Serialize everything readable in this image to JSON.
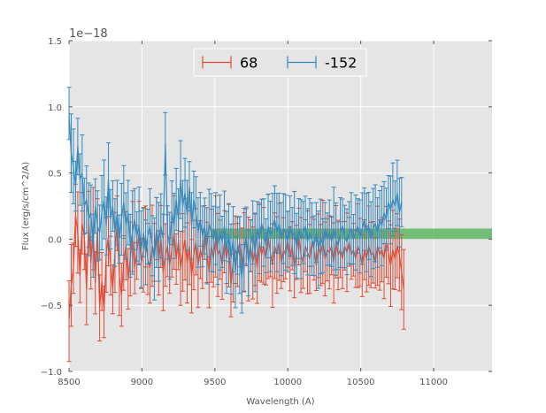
{
  "chart_data": {
    "type": "line",
    "title": "",
    "xlabel": "Wavelength (A)",
    "ylabel": "Flux (erg/s/cm^2/A)",
    "y_offset_label": "1e−18",
    "xlim": [
      8500,
      11400
    ],
    "ylim": [
      -1.0,
      1.5
    ],
    "x_ticks": [
      8500,
      9000,
      9500,
      10000,
      10500,
      11000
    ],
    "x_tick_labels": [
      "8500",
      "9000",
      "9500",
      "10000",
      "10500",
      "11000"
    ],
    "y_ticks": [
      -1.0,
      -0.5,
      0.0,
      0.5,
      1.0,
      1.5
    ],
    "y_tick_labels": [
      "−1.0",
      "−0.5",
      "0.0",
      "0.5",
      "1.0",
      "1.5"
    ],
    "grid": true,
    "legend_position": "top-center",
    "x_start": 8500,
    "x_step": 15,
    "series": [
      {
        "name": "68",
        "color": "#e24a33",
        "values": [
          -0.62,
          -0.35,
          -0.22,
          0.18,
          0.05,
          -0.28,
          0.12,
          0.02,
          -0.38,
          0.15,
          -0.18,
          0.08,
          -0.33,
          0.1,
          -0.52,
          -0.32,
          -0.55,
          -0.12,
          0.02,
          -0.2,
          -0.38,
          -0.1,
          0.12,
          -0.28,
          -0.42,
          -0.18,
          -0.05,
          -0.3,
          -0.15,
          0.02,
          -0.22,
          -0.1,
          0.05,
          -0.18,
          -0.08,
          0.02,
          -0.15,
          -0.22,
          -0.05,
          -0.1,
          0.08,
          -0.18,
          0.02,
          -0.25,
          -0.12,
          -0.05,
          -0.2,
          -0.08,
          0.05,
          -0.15,
          -0.02,
          -0.22,
          -0.1,
          0.0,
          -0.18,
          -0.05,
          -0.28,
          -0.12,
          -0.02,
          -0.2,
          -0.08,
          -0.15,
          0.05,
          -0.1,
          -0.25,
          -0.05,
          -0.15,
          0.02,
          -0.12,
          -0.08,
          -0.2,
          -0.02,
          -0.15,
          -0.05,
          -0.35,
          -0.18,
          -0.08,
          -0.12,
          -0.02,
          -0.2,
          -0.1,
          0.02,
          -0.15,
          -0.05,
          -0.18,
          -0.08,
          -0.22,
          -0.02,
          -0.12,
          -0.05,
          -0.15,
          0.02,
          -0.1,
          -0.2,
          -0.05,
          -0.12,
          -0.02,
          -0.18,
          -0.08,
          -0.12,
          0.0,
          -0.15,
          -0.05,
          -0.22,
          -0.1,
          0.02,
          -0.12,
          -0.18,
          -0.05,
          -0.1,
          -0.15,
          -0.02,
          -0.08,
          -0.2,
          -0.05,
          -0.12,
          -0.02,
          -0.15,
          -0.08,
          -0.1,
          -0.05,
          -0.18,
          -0.02,
          -0.12,
          -0.08,
          -0.15,
          -0.05,
          -0.1,
          -0.02,
          -0.12,
          -0.08,
          -0.15,
          -0.05,
          -0.1,
          -0.2,
          -0.08,
          -0.15,
          -0.05,
          -0.12,
          -0.1,
          -0.18,
          -0.05,
          -0.12,
          -0.08,
          -0.15,
          -0.02,
          -0.1,
          -0.2,
          -0.08,
          -0.15,
          -0.05,
          -0.12,
          -0.25,
          -0.38
        ]
      },
      {
        "name": "-152",
        "color": "#348abd",
        "values": [
          0.95,
          0.65,
          0.55,
          0.4,
          0.7,
          0.45,
          0.5,
          0.25,
          0.3,
          0.15,
          0.2,
          -0.05,
          0.25,
          0.1,
          0.05,
          0.2,
          0.3,
          0.1,
          0.45,
          0.15,
          0.25,
          0.05,
          0.2,
          0.0,
          0.15,
          0.28,
          0.1,
          0.2,
          -0.05,
          0.05,
          0.15,
          0.02,
          0.1,
          -0.08,
          0.05,
          -0.1,
          0.02,
          0.1,
          -0.05,
          -0.15,
          0.05,
          -0.02,
          0.1,
          0.0,
          0.72,
          0.05,
          -0.05,
          0.2,
          0.1,
          0.3,
          0.15,
          0.45,
          0.25,
          0.35,
          0.18,
          0.4,
          0.1,
          0.3,
          0.2,
          0.05,
          0.15,
          0.02,
          0.1,
          -0.05,
          0.12,
          0.05,
          0.0,
          0.08,
          -0.05,
          0.05,
          -0.02,
          0.1,
          -0.1,
          0.05,
          -0.15,
          0.0,
          -0.25,
          -0.05,
          -0.12,
          -0.3,
          -0.08,
          0.02,
          -0.18,
          -0.05,
          0.05,
          -0.1,
          0.08,
          0.0,
          0.12,
          0.05,
          -0.05,
          0.1,
          0.02,
          0.08,
          0.15,
          0.05,
          0.12,
          0.0,
          0.08,
          0.05,
          -0.02,
          0.1,
          0.02,
          0.05,
          -0.05,
          0.08,
          0.0,
          0.05,
          0.1,
          -0.02,
          0.05,
          0.0,
          -0.05,
          0.05,
          -0.08,
          0.02,
          -0.05,
          0.08,
          0.0,
          0.05,
          -0.02,
          0.08,
          0.0,
          -0.05,
          0.05,
          0.1,
          0.02,
          -0.02,
          0.05,
          0.08,
          0.0,
          0.05,
          0.1,
          0.02,
          0.08,
          0.15,
          0.05,
          0.1,
          0.0,
          0.08,
          0.12,
          0.05,
          0.15,
          0.1,
          0.2,
          0.15,
          0.28,
          0.22,
          0.3,
          0.25,
          0.35,
          0.2,
          0.28
        ]
      }
    ],
    "shaded_band": {
      "x_start": 9470,
      "x_end": 11400,
      "y_low": 0.0,
      "y_high": 0.08,
      "color": "#4caf50"
    }
  }
}
